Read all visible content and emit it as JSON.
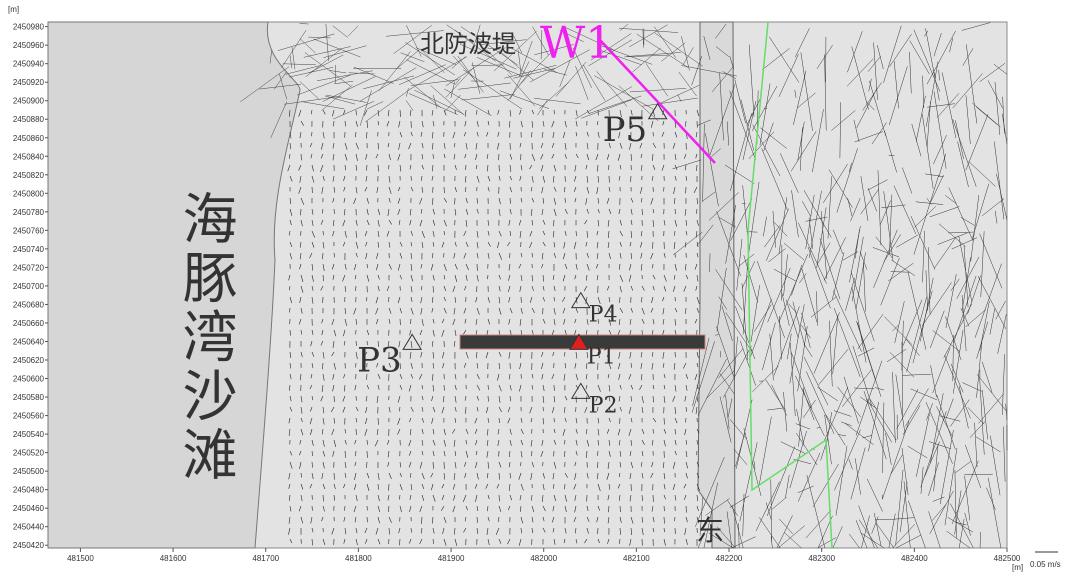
{
  "chart_data": {
    "type": "quiver",
    "x_unit": "[m]",
    "y_unit": "[m]",
    "xlim": [
      481465,
      482500
    ],
    "ylim": [
      2450417,
      2450985
    ],
    "xticks": [
      481500,
      481600,
      481700,
      481800,
      481900,
      482000,
      482100,
      482200,
      482300,
      482400,
      482500
    ],
    "yticks": [
      2450420,
      2450440,
      2450460,
      2450480,
      2450500,
      2450520,
      2450540,
      2450560,
      2450580,
      2450600,
      2450620,
      2450640,
      2450660,
      2450680,
      2450700,
      2450720,
      2450740,
      2450760,
      2450780,
      2450800,
      2450820,
      2450840,
      2450860,
      2450880,
      2450900,
      2450920,
      2450940,
      2450960,
      2450980
    ],
    "points": [
      {
        "label": "P1",
        "x": 482038,
        "y": 2450638,
        "color": "#e02020"
      },
      {
        "label": "P2",
        "x": 482040,
        "y": 2450585,
        "color": "none"
      },
      {
        "label": "P3",
        "x": 481858,
        "y": 2450638,
        "color": "none"
      },
      {
        "label": "P4",
        "x": 482040,
        "y": 2450683,
        "color": "none"
      },
      {
        "label": "P5",
        "x": 482123,
        "y": 2450887,
        "color": "none"
      }
    ],
    "annotations": {
      "beach": "海豚湾沙滩",
      "east": "东",
      "breakwater": "北防波堤",
      "wave_line": "W1"
    },
    "scale_label": "0.05 m/s"
  }
}
